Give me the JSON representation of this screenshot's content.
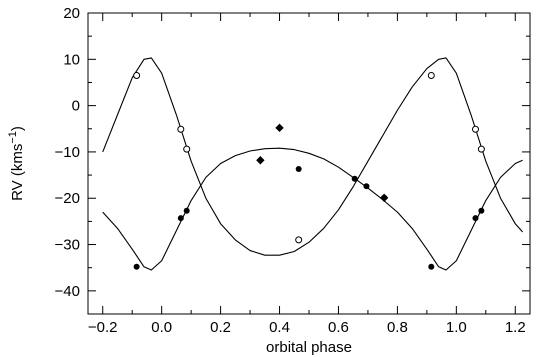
{
  "chart_data": {
    "type": "scatter",
    "title": "",
    "xlabel": "orbital phase",
    "ylabel_main": "RV (kms",
    "ylabel_sup": "−1",
    "ylabel_close": ")",
    "xlim": [
      -0.25,
      1.25
    ],
    "ylim": [
      -45,
      20
    ],
    "xticks": [
      -0.2,
      0.0,
      0.2,
      0.4,
      0.6,
      0.8,
      1.0,
      1.2
    ],
    "xtick_labels": [
      "−0.2",
      "0.0",
      "0.2",
      "0.4",
      "0.6",
      "0.8",
      "1.0",
      "1.2"
    ],
    "yticks": [
      -40,
      -30,
      -20,
      -10,
      0,
      10,
      20
    ],
    "ytick_labels": [
      "−40",
      "−30",
      "−20",
      "−10",
      "0",
      "10",
      "20"
    ],
    "x_minor_step": 0.1,
    "y_minor_step": 5,
    "grid": false,
    "series": [
      {
        "marker": "filled-circle",
        "color": "#000000",
        "points": [
          [
            -0.085,
            -34.8
          ],
          [
            0.065,
            -24.3
          ],
          [
            0.085,
            -22.7
          ],
          [
            0.465,
            -13.7
          ],
          [
            0.655,
            -15.8
          ],
          [
            0.695,
            -17.4
          ],
          [
            0.755,
            -19.9
          ],
          [
            0.915,
            -34.8
          ],
          [
            1.065,
            -24.3
          ],
          [
            1.085,
            -22.7
          ]
        ]
      },
      {
        "marker": "open-circle",
        "color": "#000000",
        "points": [
          [
            -0.085,
            6.5
          ],
          [
            0.065,
            -5.1
          ],
          [
            0.085,
            -9.4
          ],
          [
            0.465,
            -29.0
          ],
          [
            0.915,
            6.5
          ],
          [
            1.065,
            -5.1
          ],
          [
            1.085,
            -9.4
          ]
        ]
      },
      {
        "marker": "filled-diamond",
        "color": "#000000",
        "points": [
          [
            0.335,
            -11.8
          ],
          [
            0.4,
            -4.8
          ],
          [
            0.755,
            -19.9
          ]
        ]
      }
    ],
    "curves": [
      {
        "name": "",
        "color": "#000000",
        "points": [
          [
            -0.2,
            -10.0
          ],
          [
            -0.15,
            -2.0
          ],
          [
            -0.1,
            6.0
          ],
          [
            -0.06,
            10.0
          ],
          [
            -0.035,
            10.3
          ],
          [
            0.0,
            7.0
          ],
          [
            0.05,
            -2.0
          ],
          [
            0.1,
            -12.0
          ],
          [
            0.15,
            -20.0
          ],
          [
            0.2,
            -25.5
          ],
          [
            0.25,
            -29.0
          ],
          [
            0.3,
            -31.3
          ],
          [
            0.35,
            -32.3
          ],
          [
            0.4,
            -32.3
          ],
          [
            0.45,
            -31.5
          ],
          [
            0.5,
            -29.5
          ],
          [
            0.55,
            -26.5
          ],
          [
            0.6,
            -22.5
          ],
          [
            0.65,
            -17.5
          ],
          [
            0.7,
            -12.0
          ],
          [
            0.75,
            -6.5
          ],
          [
            0.8,
            -1.0
          ],
          [
            0.85,
            4.0
          ],
          [
            0.9,
            8.0
          ],
          [
            0.94,
            10.0
          ],
          [
            0.965,
            10.3
          ],
          [
            1.0,
            7.0
          ],
          [
            1.05,
            -2.0
          ],
          [
            1.1,
            -12.0
          ],
          [
            1.15,
            -20.0
          ],
          [
            1.2,
            -25.5
          ],
          [
            1.225,
            -27.3
          ]
        ]
      },
      {
        "name": "",
        "color": "#000000",
        "points": [
          [
            -0.2,
            -23.0
          ],
          [
            -0.15,
            -26.5
          ],
          [
            -0.1,
            -31.0
          ],
          [
            -0.06,
            -34.8
          ],
          [
            -0.035,
            -35.5
          ],
          [
            0.0,
            -33.5
          ],
          [
            0.05,
            -27.0
          ],
          [
            0.1,
            -20.5
          ],
          [
            0.15,
            -15.5
          ],
          [
            0.2,
            -12.5
          ],
          [
            0.25,
            -10.8
          ],
          [
            0.3,
            -9.8
          ],
          [
            0.35,
            -9.3
          ],
          [
            0.4,
            -9.2
          ],
          [
            0.45,
            -9.5
          ],
          [
            0.5,
            -10.3
          ],
          [
            0.55,
            -11.5
          ],
          [
            0.6,
            -13.3
          ],
          [
            0.65,
            -15.5
          ],
          [
            0.7,
            -17.8
          ],
          [
            0.75,
            -20.3
          ],
          [
            0.8,
            -23.0
          ],
          [
            0.85,
            -26.5
          ],
          [
            0.9,
            -31.0
          ],
          [
            0.94,
            -34.8
          ],
          [
            0.965,
            -35.5
          ],
          [
            1.0,
            -33.5
          ],
          [
            1.05,
            -27.0
          ],
          [
            1.1,
            -20.5
          ],
          [
            1.15,
            -15.5
          ],
          [
            1.2,
            -12.5
          ],
          [
            1.225,
            -11.8
          ]
        ]
      }
    ]
  }
}
